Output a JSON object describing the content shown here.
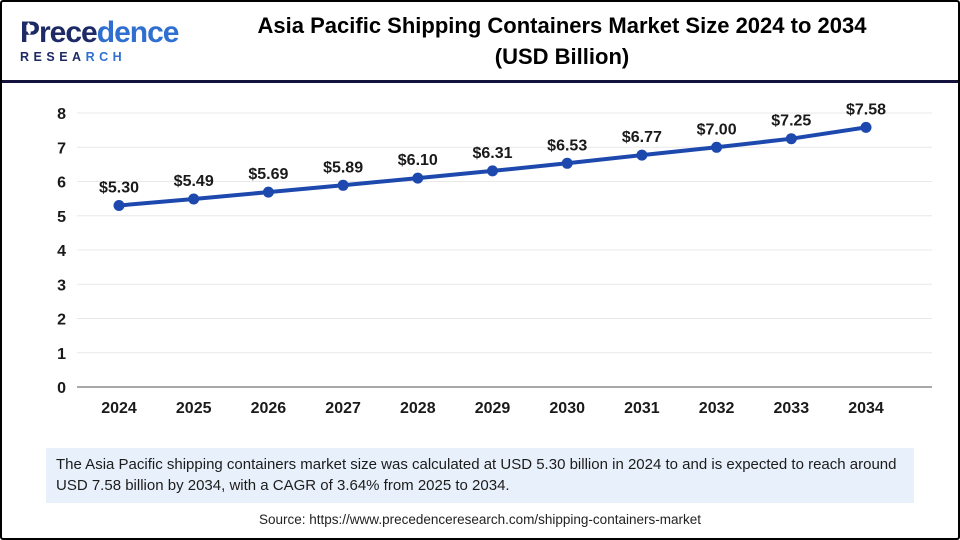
{
  "brand": {
    "name": "Precedence",
    "name_dark": "Prece",
    "name_light": "dence",
    "subtitle": "RESEARCH",
    "subtitle_dark": "RESEA",
    "subtitle_light": "RCH",
    "color_dark": "#1e2a66",
    "color_light": "#2f6fd0"
  },
  "header": {
    "title_line1": "Asia Pacific Shipping Containers Market Size 2024 to 2034",
    "title_line2": "(USD Billion)"
  },
  "chart_data": {
    "type": "line",
    "x": [
      "2024",
      "2025",
      "2026",
      "2027",
      "2028",
      "2029",
      "2030",
      "2031",
      "2032",
      "2033",
      "2034"
    ],
    "values": [
      5.3,
      5.49,
      5.69,
      5.89,
      6.1,
      6.31,
      6.53,
      6.77,
      7.0,
      7.25,
      7.58
    ],
    "labels": [
      "$5.30",
      "$5.49",
      "$5.69",
      "$5.89",
      "$6.10",
      "$6.31",
      "$6.53",
      "$6.77",
      "$7.00",
      "$7.25",
      "$7.58"
    ],
    "title": "Asia Pacific Shipping Containers Market Size 2024 to 2034 (USD Billion)",
    "xlabel": "",
    "ylabel": "",
    "ylim": [
      0,
      8
    ],
    "yticks": [
      0,
      1,
      2,
      3,
      4,
      5,
      6,
      7,
      8
    ],
    "grid": true,
    "legend": "none",
    "line_color": "#1d49ae",
    "marker_color": "#1d49ae",
    "gridline_color": "#e8e8e8",
    "axis_line_color": "#a8a8a8"
  },
  "note": {
    "text": "The Asia Pacific shipping containers market size was calculated at USD 5.30 billion in 2024 to and is expected to reach around USD 7.58 billion by 2034, with a CAGR of 3.64% from 2025 to 2034."
  },
  "source": {
    "text": "Source: https://www.precedenceresearch.com/shipping-containers-market"
  }
}
